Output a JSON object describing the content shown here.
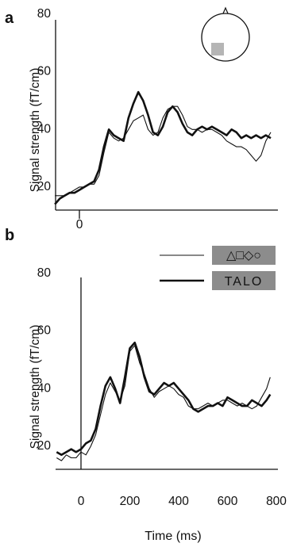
{
  "chart_data": [
    {
      "type": "line",
      "panel_label": "a",
      "ylabel": "Signal strength (fT/cm)",
      "xlim": [
        -100,
        820
      ],
      "ylim": [
        12,
        80
      ],
      "yticks": [
        20,
        40,
        60,
        80
      ],
      "xticks": [
        0
      ],
      "grid": false,
      "inset": "head-sensor-map",
      "series": [
        {
          "style": "thin",
          "points": [
            [
              -100,
              17
            ],
            [
              -80,
              17
            ],
            [
              -60,
              17
            ],
            [
              -40,
              18
            ],
            [
              -20,
              19
            ],
            [
              0,
              20
            ],
            [
              20,
              20
            ],
            [
              40,
              21
            ],
            [
              60,
              21
            ],
            [
              80,
              24
            ],
            [
              100,
              32
            ],
            [
              120,
              39
            ],
            [
              140,
              37
            ],
            [
              160,
              36
            ],
            [
              180,
              37
            ],
            [
              200,
              40
            ],
            [
              220,
              43
            ],
            [
              240,
              44
            ],
            [
              260,
              45
            ],
            [
              280,
              40
            ],
            [
              300,
              38
            ],
            [
              320,
              39
            ],
            [
              340,
              44
            ],
            [
              360,
              47
            ],
            [
              380,
              48
            ],
            [
              400,
              48
            ],
            [
              420,
              45
            ],
            [
              440,
              41
            ],
            [
              460,
              40
            ],
            [
              480,
              40
            ],
            [
              500,
              39
            ],
            [
              520,
              40
            ],
            [
              540,
              40
            ],
            [
              560,
              39
            ],
            [
              580,
              38
            ],
            [
              600,
              36
            ],
            [
              620,
              35
            ],
            [
              640,
              34
            ],
            [
              660,
              34
            ],
            [
              680,
              33
            ],
            [
              700,
              31
            ],
            [
              720,
              29
            ],
            [
              740,
              31
            ],
            [
              760,
              36
            ],
            [
              780,
              39
            ]
          ]
        },
        {
          "style": "thick",
          "points": [
            [
              -100,
              14
            ],
            [
              -80,
              16
            ],
            [
              -60,
              17
            ],
            [
              -40,
              18
            ],
            [
              -20,
              18
            ],
            [
              0,
              19
            ],
            [
              20,
              20
            ],
            [
              40,
              21
            ],
            [
              60,
              22
            ],
            [
              80,
              26
            ],
            [
              100,
              34
            ],
            [
              120,
              40
            ],
            [
              140,
              38
            ],
            [
              160,
              37
            ],
            [
              180,
              36
            ],
            [
              200,
              44
            ],
            [
              220,
              49
            ],
            [
              240,
              53
            ],
            [
              260,
              50
            ],
            [
              280,
              45
            ],
            [
              300,
              39
            ],
            [
              320,
              38
            ],
            [
              340,
              41
            ],
            [
              360,
              46
            ],
            [
              380,
              48
            ],
            [
              400,
              46
            ],
            [
              420,
              42
            ],
            [
              440,
              39
            ],
            [
              460,
              38
            ],
            [
              480,
              40
            ],
            [
              500,
              41
            ],
            [
              520,
              40
            ],
            [
              540,
              41
            ],
            [
              560,
              40
            ],
            [
              580,
              39
            ],
            [
              600,
              38
            ],
            [
              620,
              40
            ],
            [
              640,
              39
            ],
            [
              660,
              37
            ],
            [
              680,
              38
            ],
            [
              700,
              37
            ],
            [
              720,
              38
            ],
            [
              740,
              37
            ],
            [
              760,
              38
            ],
            [
              780,
              37
            ]
          ]
        }
      ]
    },
    {
      "type": "line",
      "panel_label": "b",
      "ylabel": "Signal strength (fT/cm)",
      "xlabel": "Time (ms)",
      "xlim": [
        -100,
        820
      ],
      "ylim": [
        12,
        80
      ],
      "yticks": [
        20,
        40,
        60,
        80
      ],
      "xticks": [
        0,
        200,
        400,
        600,
        800
      ],
      "xtick_labels": [
        "0",
        "200",
        "400",
        "600",
        "800"
      ],
      "grid": false,
      "legend_position": "top-right",
      "legend": [
        {
          "style": "thin",
          "label": "△□◇○"
        },
        {
          "style": "thick",
          "label": "TALO"
        }
      ],
      "series": [
        {
          "style": "thin",
          "points": [
            [
              -100,
              16
            ],
            [
              -80,
              15
            ],
            [
              -60,
              17
            ],
            [
              -40,
              16
            ],
            [
              -20,
              16
            ],
            [
              0,
              18
            ],
            [
              20,
              17
            ],
            [
              40,
              20
            ],
            [
              60,
              24
            ],
            [
              80,
              31
            ],
            [
              100,
              38
            ],
            [
              120,
              42
            ],
            [
              140,
              39
            ],
            [
              160,
              36
            ],
            [
              180,
              41
            ],
            [
              200,
              53
            ],
            [
              220,
              55
            ],
            [
              240,
              49
            ],
            [
              260,
              45
            ],
            [
              280,
              40
            ],
            [
              300,
              37
            ],
            [
              320,
              39
            ],
            [
              340,
              40
            ],
            [
              360,
              41
            ],
            [
              380,
              40
            ],
            [
              400,
              38
            ],
            [
              420,
              37
            ],
            [
              440,
              34
            ],
            [
              460,
              33
            ],
            [
              480,
              33
            ],
            [
              500,
              34
            ],
            [
              520,
              35
            ],
            [
              540,
              34
            ],
            [
              560,
              35
            ],
            [
              580,
              36
            ],
            [
              600,
              36
            ],
            [
              620,
              35
            ],
            [
              640,
              34
            ],
            [
              660,
              35
            ],
            [
              680,
              34
            ],
            [
              700,
              33
            ],
            [
              720,
              34
            ],
            [
              740,
              37
            ],
            [
              760,
              40
            ],
            [
              775,
              44
            ]
          ]
        },
        {
          "style": "thick",
          "points": [
            [
              -100,
              18
            ],
            [
              -80,
              17
            ],
            [
              -60,
              18
            ],
            [
              -40,
              19
            ],
            [
              -20,
              18
            ],
            [
              0,
              19
            ],
            [
              20,
              21
            ],
            [
              40,
              22
            ],
            [
              60,
              26
            ],
            [
              80,
              34
            ],
            [
              100,
              41
            ],
            [
              120,
              44
            ],
            [
              140,
              40
            ],
            [
              160,
              35
            ],
            [
              180,
              44
            ],
            [
              200,
              54
            ],
            [
              220,
              56
            ],
            [
              240,
              51
            ],
            [
              260,
              44
            ],
            [
              280,
              39
            ],
            [
              300,
              38
            ],
            [
              320,
              40
            ],
            [
              340,
              42
            ],
            [
              360,
              41
            ],
            [
              380,
              42
            ],
            [
              400,
              40
            ],
            [
              420,
              38
            ],
            [
              440,
              36
            ],
            [
              460,
              33
            ],
            [
              480,
              32
            ],
            [
              500,
              33
            ],
            [
              520,
              34
            ],
            [
              540,
              34
            ],
            [
              560,
              35
            ],
            [
              580,
              34
            ],
            [
              600,
              37
            ],
            [
              620,
              36
            ],
            [
              640,
              35
            ],
            [
              660,
              34
            ],
            [
              680,
              34
            ],
            [
              700,
              36
            ],
            [
              720,
              35
            ],
            [
              740,
              34
            ],
            [
              760,
              36
            ],
            [
              775,
              38
            ]
          ]
        }
      ]
    }
  ],
  "colors": {
    "line": "#111111",
    "legend_box": "#8c8c8c",
    "sensor_patch": "#b5b5b5"
  }
}
